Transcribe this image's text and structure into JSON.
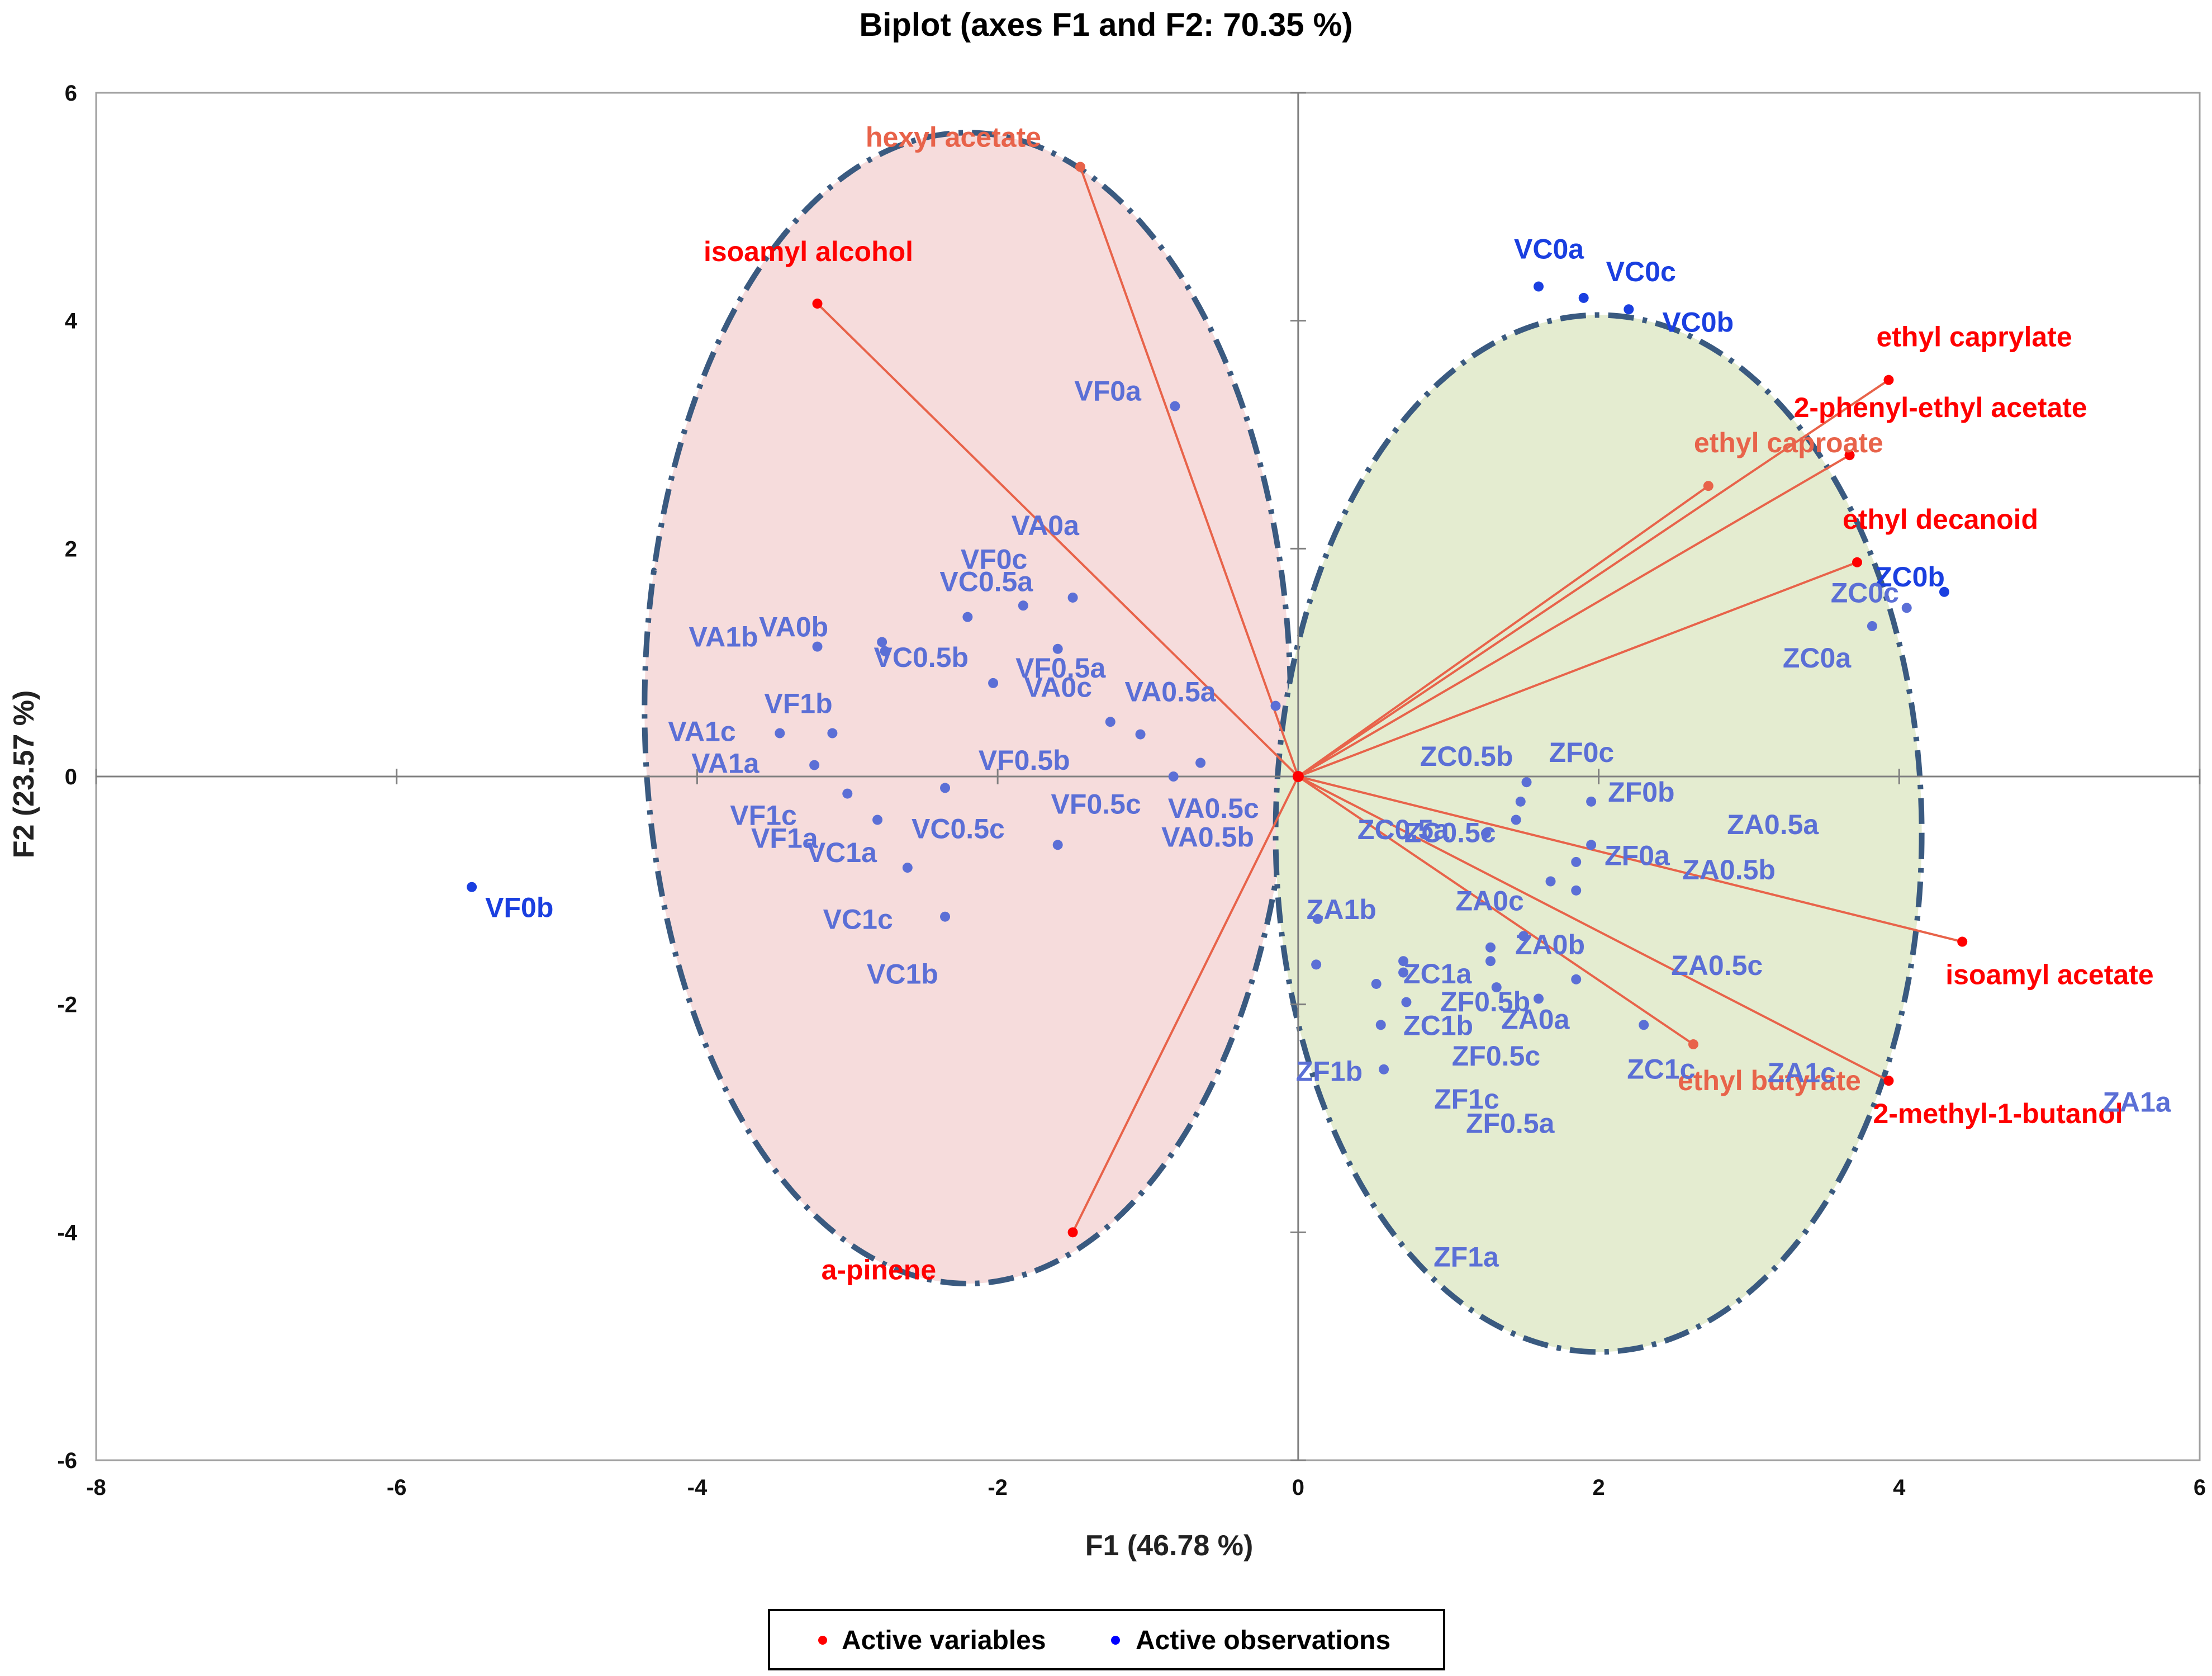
{
  "chart_data": {
    "type": "scatter",
    "subtype": "biplot",
    "title": "Biplot (axes F1 and F2: 70.35 %)",
    "xlabel": "F1 (46.78 %)",
    "ylabel": "F2 (23.57 %)",
    "xlim": [
      -8,
      6
    ],
    "ylim": [
      -6,
      6
    ],
    "xticks": [
      -8,
      -6,
      -4,
      -2,
      0,
      2,
      4,
      6
    ],
    "yticks": [
      -6,
      -4,
      -2,
      0,
      2,
      4,
      6
    ],
    "grid": false,
    "legend_position": "bottom-center",
    "legend": [
      {
        "label": "Active variables",
        "color": "#ff0000"
      },
      {
        "label": "Active observations",
        "color": "#0000ff"
      }
    ],
    "colors": {
      "variable_strong": "#ff0000",
      "variable_light": "#e8634a",
      "observation_strong": "#1a3fe0",
      "observation_light": "#5b6fd6",
      "ellipse_stroke": "#3a5a80",
      "ellipse_left_fill": "#f6dcdc",
      "ellipse_right_fill": "#e4ecd0",
      "axis": "#808080"
    },
    "ellipses": [
      {
        "name": "V-group",
        "cx": -2.2,
        "cy": 0.6,
        "rx": 2.15,
        "ry": 5.05,
        "fill": "#f6dcdc"
      },
      {
        "name": "Z-group",
        "cx": 2.0,
        "cy": -0.5,
        "rx": 2.15,
        "ry": 4.55,
        "fill": "#e4ecd0"
      }
    ],
    "variables": [
      {
        "label": "hexyl acetate",
        "x": -1.45,
        "y": 5.35,
        "style": "light"
      },
      {
        "label": "isoamyl alcohol",
        "x": -3.2,
        "y": 4.15,
        "style": "strong"
      },
      {
        "label": "ethyl caprylate",
        "x": 3.93,
        "y": 3.48,
        "style": "strong"
      },
      {
        "label": "2-phenyl-ethyl acetate",
        "x": 3.67,
        "y": 2.82,
        "style": "strong"
      },
      {
        "label": "ethyl caproate",
        "x": 2.73,
        "y": 2.55,
        "style": "light"
      },
      {
        "label": "ethyl decanoid",
        "x": 3.72,
        "y": 1.88,
        "style": "strong"
      },
      {
        "label": "isoamyl acetate",
        "x": 4.42,
        "y": -1.45,
        "style": "strong"
      },
      {
        "label": "2-methyl-1-butanol",
        "x": 3.93,
        "y": -2.67,
        "style": "strong"
      },
      {
        "label": "ethyl butyrate",
        "x": 2.63,
        "y": -2.35,
        "style": "light"
      },
      {
        "label": "a-pinene",
        "x": -1.5,
        "y": -4.0,
        "style": "strong"
      }
    ],
    "observations": [
      {
        "label": "VC0a",
        "x": 1.6,
        "y": 4.3,
        "style": "strong"
      },
      {
        "label": "VC0c",
        "x": 1.9,
        "y": 4.2,
        "style": "strong"
      },
      {
        "label": "VC0b",
        "x": 2.2,
        "y": 4.1,
        "style": "strong"
      },
      {
        "label": "VF0a",
        "x": -0.82,
        "y": 3.25,
        "style": "light"
      },
      {
        "label": "VA0a",
        "x": -1.5,
        "y": 1.57,
        "style": "light"
      },
      {
        "label": "VF0c",
        "x": -1.83,
        "y": 1.5,
        "style": "light"
      },
      {
        "label": "VC0.5a",
        "x": -2.2,
        "y": 1.4,
        "style": "light"
      },
      {
        "label": "VA0b",
        "x": -2.77,
        "y": 1.18,
        "style": "light"
      },
      {
        "label": "VA0c",
        "x": -1.6,
        "y": 1.12,
        "style": "light"
      },
      {
        "label": "VC0.5b",
        "x": -2.75,
        "y": 1.1,
        "style": "light"
      },
      {
        "label": "VA1b",
        "x": -3.2,
        "y": 1.14,
        "style": "light"
      },
      {
        "label": "VF0.5a",
        "x": -2.03,
        "y": 0.82,
        "style": "light"
      },
      {
        "label": "VF1b",
        "x": -3.1,
        "y": 0.38,
        "style": "light"
      },
      {
        "label": "VA0.5a",
        "x": -0.15,
        "y": 0.62,
        "style": "light"
      },
      {
        "label": "VF0.5b",
        "x": -1.25,
        "y": 0.48,
        "style": "light"
      },
      {
        "label": "VA1c",
        "x": -3.45,
        "y": 0.38,
        "style": "light"
      },
      {
        "label": "VF0.5c",
        "x": -1.05,
        "y": 0.37,
        "style": "light"
      },
      {
        "label": "VA1a",
        "x": -3.22,
        "y": 0.1,
        "style": "light"
      },
      {
        "label": "VA0.5c",
        "x": -0.83,
        "y": 0.0,
        "style": "light"
      },
      {
        "label": "VF1c",
        "x": -3.0,
        "y": -0.15,
        "style": "light"
      },
      {
        "label": "VC0.5c",
        "x": -2.35,
        "y": -0.1,
        "style": "light"
      },
      {
        "label": "VF1a",
        "x": -2.8,
        "y": -0.38,
        "style": "light"
      },
      {
        "label": "VA0.5b",
        "x": -0.65,
        "y": 0.12,
        "style": "light"
      },
      {
        "label": "VC1a",
        "x": -2.6,
        "y": -0.8,
        "style": "light"
      },
      {
        "label": "VC1c",
        "x": -1.6,
        "y": -0.6,
        "style": "light"
      },
      {
        "label": "VC1b",
        "x": -2.35,
        "y": -1.23,
        "style": "light"
      },
      {
        "label": "VF0b",
        "x": -5.5,
        "y": -0.97,
        "style": "strong"
      },
      {
        "label": "ZC0b",
        "x": 4.3,
        "y": 1.62,
        "style": "strong"
      },
      {
        "label": "ZC0c",
        "x": 4.05,
        "y": 1.48,
        "style": "light"
      },
      {
        "label": "ZC0a",
        "x": 3.82,
        "y": 1.32,
        "style": "light"
      },
      {
        "label": "ZC0.5b",
        "x": 1.48,
        "y": -0.22,
        "style": "light"
      },
      {
        "label": "ZF0c",
        "x": 1.52,
        "y": -0.05,
        "style": "light"
      },
      {
        "label": "ZC0.5a",
        "x": 1.25,
        "y": -0.5,
        "style": "light"
      },
      {
        "label": "ZF0b",
        "x": 1.95,
        "y": -0.22,
        "style": "light"
      },
      {
        "label": "ZC0.5c",
        "x": 1.45,
        "y": -0.38,
        "style": "light"
      },
      {
        "label": "ZA0.5a",
        "x": 1.85,
        "y": -0.75,
        "style": "light"
      },
      {
        "label": "ZF0a",
        "x": 1.95,
        "y": -0.6,
        "style": "light"
      },
      {
        "label": "ZA0.5b",
        "x": 1.85,
        "y": -1.0,
        "style": "light"
      },
      {
        "label": "ZA0c",
        "x": 1.68,
        "y": -0.92,
        "style": "light"
      },
      {
        "label": "ZA0a",
        "x": 1.5,
        "y": -1.4,
        "style": "light"
      },
      {
        "label": "ZA0.5c",
        "x": 1.85,
        "y": -1.78,
        "style": "light"
      },
      {
        "label": "ZC1c",
        "x": 2.3,
        "y": -2.18,
        "style": "light"
      },
      {
        "label": "ZA0b",
        "x": 1.28,
        "y": -1.5,
        "style": "light"
      },
      {
        "label": "ZA1b",
        "x": 0.13,
        "y": -1.25,
        "style": "light"
      },
      {
        "label": "ZC1a",
        "x": 0.7,
        "y": -1.62,
        "style": "light"
      },
      {
        "label": "ZF0.5b",
        "x": 1.28,
        "y": -1.62,
        "style": "light"
      },
      {
        "label": "ZA1c",
        "x": 0.52,
        "y": -1.82,
        "style": "light"
      },
      {
        "label": "ZA1a",
        "x": 0.72,
        "y": -1.98,
        "style": "light"
      },
      {
        "label": "ZF1b",
        "x": 0.55,
        "y": -2.18,
        "style": "light"
      },
      {
        "label": "ZC1b",
        "x": 0.7,
        "y": -1.72,
        "style": "light"
      },
      {
        "label": "ZF0.5c",
        "x": 1.32,
        "y": -1.85,
        "style": "light"
      },
      {
        "label": "ZF1c",
        "x": 0.57,
        "y": -2.57,
        "style": "light"
      },
      {
        "label": "ZF0.5a",
        "x": 1.6,
        "y": -1.95,
        "style": "light"
      },
      {
        "label": "ZF1a",
        "x": 0.12,
        "y": -1.65,
        "style": "light"
      }
    ]
  }
}
